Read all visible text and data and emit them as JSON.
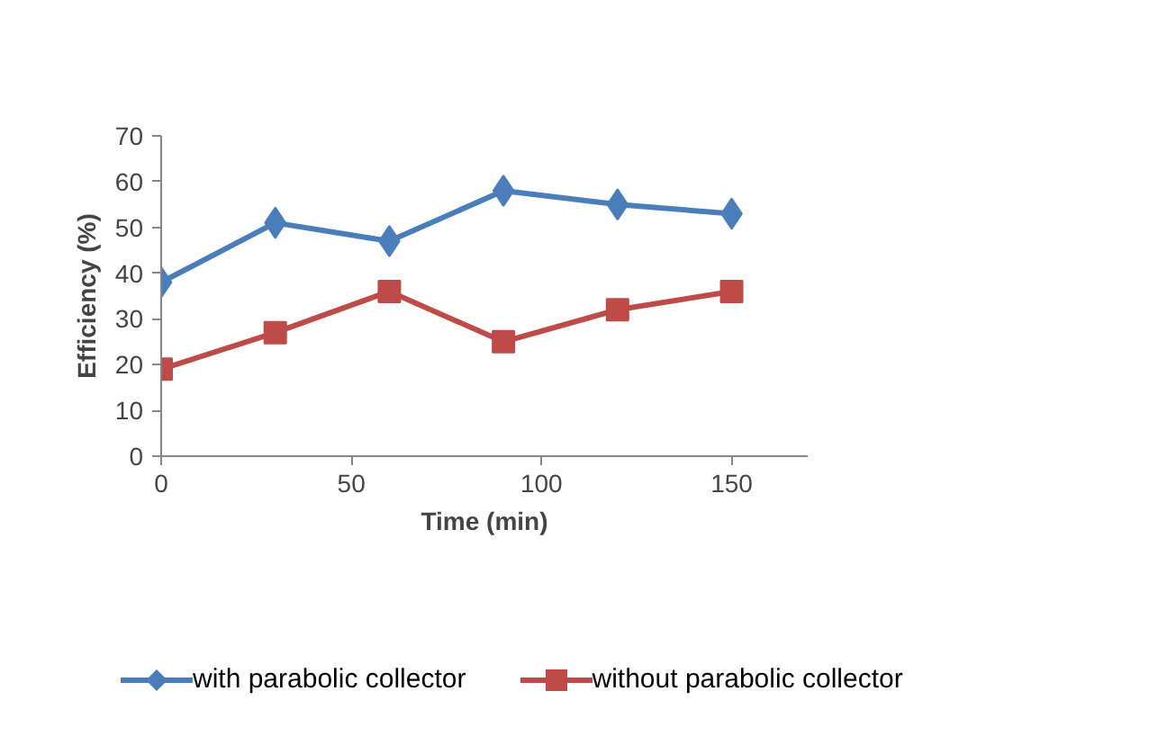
{
  "chart_data": {
    "type": "line",
    "xlabel": "Time (min)",
    "ylabel": "Efficiency (%)",
    "x": [
      0,
      30,
      60,
      90,
      120,
      150
    ],
    "series": [
      {
        "name": "with parabolic collector",
        "color": "#4a7ebb",
        "marker": "diamond",
        "values": [
          38,
          51,
          47,
          58,
          55,
          53
        ]
      },
      {
        "name": "without parabolic collector",
        "color": "#be4b48",
        "marker": "square",
        "values": [
          19,
          27,
          36,
          25,
          32,
          36
        ]
      }
    ],
    "xlim": [
      0,
      170
    ],
    "xticks": [
      0,
      50,
      100,
      150
    ],
    "ylim": [
      0,
      70
    ],
    "yticks": [
      0,
      10,
      20,
      30,
      40,
      50,
      60,
      70
    ],
    "grid": false,
    "legend": "bottom"
  }
}
